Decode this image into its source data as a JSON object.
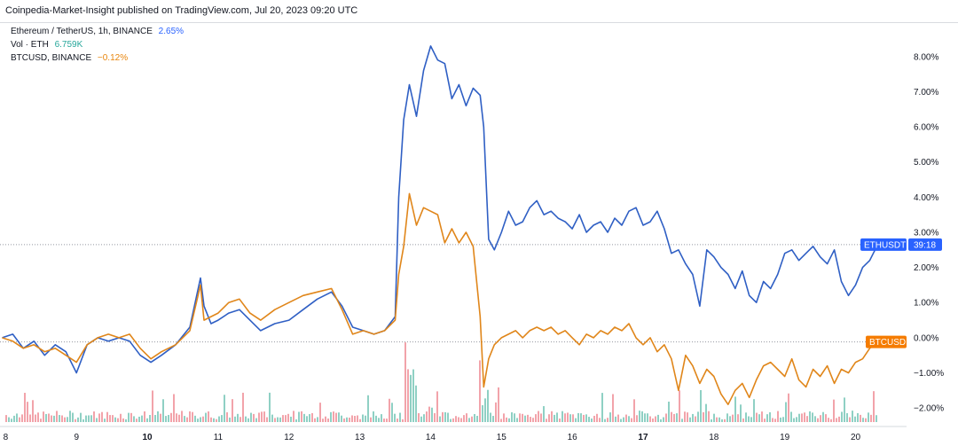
{
  "header": {
    "publisher_line": "Coinpedia-Market-Insight published on TradingView.com, Jul 20, 2023 09:20 UTC"
  },
  "legend": {
    "eth_label": "Ethereum / TetherUS, 1h, BINANCE",
    "eth_value": "2.65%",
    "vol_label": "Vol · ETH",
    "vol_value": "6.759K",
    "btc_label": "BTCUSD, BINANCE",
    "btc_value": "−0.12%"
  },
  "colors": {
    "eth": "#2f5fc4",
    "btc": "#e0861a",
    "vol_up": "#8fd0c4",
    "vol_down": "#f2a3aa",
    "grid": "#d6d8dd",
    "eth_tag": "#2962ff",
    "btc_tag": "#f57c00"
  },
  "tags": {
    "eth_symbol": "ETHUSDT",
    "eth_countdown": "39:18",
    "btc_symbol": "BTCUSD"
  },
  "chart_data": {
    "type": "line",
    "title": "",
    "xlabel": "",
    "ylabel": "",
    "ylim": [
      -2.4,
      8.6
    ],
    "y_ticks": [
      "8.00%",
      "7.00%",
      "6.00%",
      "5.00%",
      "4.00%",
      "3.00%",
      "2.00%",
      "1.00%",
      "0.00%",
      "−1.00%",
      "−2.00%"
    ],
    "y_tick_values": [
      8,
      7,
      6,
      5,
      4,
      3,
      2,
      1,
      0,
      -1,
      -2
    ],
    "x_ticks": [
      {
        "label": "8",
        "day": 8,
        "bold": false
      },
      {
        "label": "9",
        "day": 9,
        "bold": false
      },
      {
        "label": "10",
        "day": 10,
        "bold": true
      },
      {
        "label": "11",
        "day": 11,
        "bold": false
      },
      {
        "label": "12",
        "day": 12,
        "bold": false
      },
      {
        "label": "13",
        "day": 13,
        "bold": false
      },
      {
        "label": "14",
        "day": 14,
        "bold": false
      },
      {
        "label": "15",
        "day": 15,
        "bold": false
      },
      {
        "label": "16",
        "day": 16,
        "bold": false
      },
      {
        "label": "17",
        "day": 17,
        "bold": true
      },
      {
        "label": "18",
        "day": 18,
        "bold": false
      },
      {
        "label": "19",
        "day": 19,
        "bold": false
      },
      {
        "label": "20",
        "day": 20,
        "bold": false
      }
    ],
    "xlim": [
      7.92,
      20.72
    ],
    "series": [
      {
        "key": "eth",
        "x": [
          7.95,
          8.1,
          8.25,
          8.4,
          8.55,
          8.7,
          8.85,
          9.0,
          9.15,
          9.3,
          9.45,
          9.6,
          9.75,
          9.9,
          10.05,
          10.2,
          10.4,
          10.6,
          10.75,
          10.8,
          10.9,
          11.0,
          11.15,
          11.3,
          11.45,
          11.6,
          11.8,
          12.0,
          12.2,
          12.4,
          12.6,
          12.75,
          12.9,
          13.05,
          13.2,
          13.35,
          13.5,
          13.55,
          13.62,
          13.7,
          13.8,
          13.9,
          14.0,
          14.1,
          14.2,
          14.3,
          14.4,
          14.5,
          14.6,
          14.7,
          14.75,
          14.82,
          14.9,
          15.0,
          15.1,
          15.2,
          15.3,
          15.4,
          15.5,
          15.6,
          15.7,
          15.8,
          15.9,
          16.0,
          16.1,
          16.2,
          16.3,
          16.4,
          16.5,
          16.6,
          16.7,
          16.8,
          16.9,
          17.0,
          17.1,
          17.2,
          17.3,
          17.4,
          17.5,
          17.6,
          17.7,
          17.8,
          17.9,
          18.0,
          18.1,
          18.2,
          18.3,
          18.4,
          18.5,
          18.6,
          18.7,
          18.8,
          18.9,
          19.0,
          19.1,
          19.2,
          19.3,
          19.4,
          19.5,
          19.6,
          19.7,
          19.8,
          19.9,
          20.0,
          20.1,
          20.2,
          20.3,
          20.35
        ],
        "values": [
          0.0,
          0.1,
          -0.3,
          -0.1,
          -0.5,
          -0.2,
          -0.4,
          -1.0,
          -0.2,
          0.0,
          -0.1,
          0.0,
          -0.1,
          -0.5,
          -0.7,
          -0.5,
          -0.2,
          0.3,
          1.7,
          0.9,
          0.4,
          0.5,
          0.7,
          0.8,
          0.5,
          0.2,
          0.4,
          0.5,
          0.8,
          1.1,
          1.3,
          0.9,
          0.3,
          0.2,
          0.1,
          0.2,
          0.6,
          4.0,
          6.2,
          7.2,
          6.3,
          7.6,
          8.3,
          7.9,
          7.8,
          6.8,
          7.2,
          6.6,
          7.1,
          6.9,
          6.0,
          2.8,
          2.5,
          3.0,
          3.6,
          3.2,
          3.3,
          3.7,
          3.9,
          3.5,
          3.6,
          3.4,
          3.3,
          3.1,
          3.5,
          3.0,
          3.2,
          3.3,
          3.0,
          3.4,
          3.2,
          3.6,
          3.7,
          3.2,
          3.3,
          3.6,
          3.1,
          2.4,
          2.5,
          2.1,
          1.8,
          0.9,
          2.5,
          2.3,
          2.0,
          1.8,
          1.4,
          1.9,
          1.2,
          1.0,
          1.6,
          1.4,
          1.8,
          2.4,
          2.5,
          2.2,
          2.4,
          2.6,
          2.3,
          2.1,
          2.5,
          1.6,
          1.2,
          1.5,
          2.0,
          2.2,
          2.6,
          2.65
        ]
      },
      {
        "key": "btc",
        "x": [
          7.95,
          8.1,
          8.25,
          8.4,
          8.55,
          8.7,
          8.85,
          9.0,
          9.15,
          9.3,
          9.45,
          9.6,
          9.75,
          9.9,
          10.05,
          10.2,
          10.4,
          10.6,
          10.75,
          10.8,
          10.9,
          11.0,
          11.15,
          11.3,
          11.45,
          11.6,
          11.8,
          12.0,
          12.2,
          12.4,
          12.6,
          12.75,
          12.9,
          13.05,
          13.2,
          13.35,
          13.5,
          13.55,
          13.62,
          13.7,
          13.8,
          13.9,
          14.0,
          14.1,
          14.2,
          14.3,
          14.4,
          14.5,
          14.6,
          14.7,
          14.75,
          14.82,
          14.9,
          15.0,
          15.1,
          15.2,
          15.3,
          15.4,
          15.5,
          15.6,
          15.7,
          15.8,
          15.9,
          16.0,
          16.1,
          16.2,
          16.3,
          16.4,
          16.5,
          16.6,
          16.7,
          16.8,
          16.9,
          17.0,
          17.1,
          17.2,
          17.3,
          17.4,
          17.5,
          17.6,
          17.7,
          17.8,
          17.9,
          18.0,
          18.1,
          18.2,
          18.3,
          18.4,
          18.5,
          18.6,
          18.7,
          18.8,
          18.9,
          19.0,
          19.1,
          19.2,
          19.3,
          19.4,
          19.5,
          19.6,
          19.7,
          19.8,
          19.9,
          20.0,
          20.1,
          20.2,
          20.3,
          20.35
        ],
        "values": [
          0.0,
          -0.1,
          -0.3,
          -0.2,
          -0.4,
          -0.3,
          -0.5,
          -0.7,
          -0.2,
          0.0,
          0.1,
          0.0,
          0.1,
          -0.3,
          -0.6,
          -0.4,
          -0.2,
          0.2,
          1.5,
          0.5,
          0.6,
          0.7,
          1.0,
          1.1,
          0.7,
          0.5,
          0.8,
          1.0,
          1.2,
          1.3,
          1.4,
          0.8,
          0.1,
          0.2,
          0.1,
          0.2,
          0.5,
          1.8,
          2.6,
          4.1,
          3.2,
          3.7,
          3.6,
          3.5,
          2.7,
          3.1,
          2.7,
          3.0,
          2.6,
          0.6,
          -1.4,
          -0.6,
          -0.2,
          0.0,
          0.1,
          0.2,
          0.0,
          0.2,
          0.3,
          0.2,
          0.3,
          0.1,
          0.2,
          0.0,
          -0.2,
          0.1,
          0.0,
          0.2,
          0.1,
          0.3,
          0.2,
          0.4,
          0.0,
          -0.2,
          0.0,
          -0.4,
          -0.2,
          -0.6,
          -1.5,
          -0.5,
          -0.8,
          -1.3,
          -0.9,
          -1.1,
          -1.6,
          -1.9,
          -1.5,
          -1.3,
          -1.7,
          -1.2,
          -0.8,
          -0.7,
          -0.9,
          -1.1,
          -0.6,
          -1.2,
          -1.4,
          -0.9,
          -1.1,
          -0.8,
          -1.3,
          -0.9,
          -1.0,
          -0.7,
          -0.6,
          -0.3,
          -0.12,
          -0.12
        ]
      }
    ],
    "reference_lines": [
      {
        "series": "eth",
        "value": 2.65
      },
      {
        "series": "btc",
        "value": -0.12
      }
    ]
  }
}
